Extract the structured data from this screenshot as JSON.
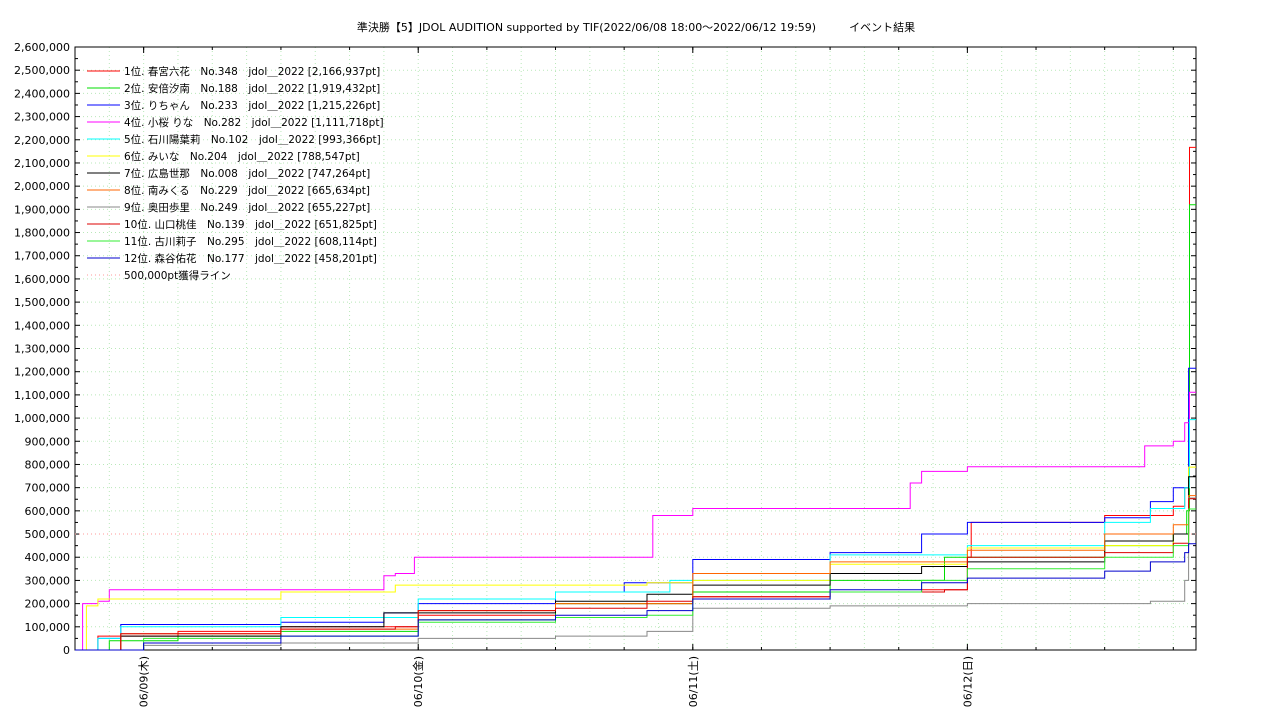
{
  "chart_data": {
    "type": "line",
    "title": "準決勝【5】JDOL AUDITION supported by TIF(2022/06/08 18:00～2022/06/12 19:59)　　　イベント結果",
    "xlabel": "",
    "ylabel": "",
    "x_start": "2022-06-08 18:00",
    "x_end": "2022-06-12 19:59",
    "ylim": [
      0,
      2600000
    ],
    "grid": true,
    "legend_position": "top-left",
    "y_ticks": [
      "0",
      "100,000",
      "200,000",
      "300,000",
      "400,000",
      "500,000",
      "600,000",
      "700,000",
      "800,000",
      "900,000",
      "1,000,000",
      "1,100,000",
      "1,200,000",
      "1,300,000",
      "1,400,000",
      "1,500,000",
      "1,600,000",
      "1,700,000",
      "1,800,000",
      "1,900,000",
      "2,000,000",
      "2,100,000",
      "2,200,000",
      "2,300,000",
      "2,400,000",
      "2,500,000",
      "2,600,000"
    ],
    "x_ticks": [
      {
        "x": "2022-06-09 00:00",
        "label": "06/09(木)"
      },
      {
        "x": "2022-06-10 00:00",
        "label": "06/10(金)"
      },
      {
        "x": "2022-06-11 00:00",
        "label": "06/11(土)"
      },
      {
        "x": "2022-06-12 00:00",
        "label": "06/12(日)"
      }
    ],
    "threshold": {
      "value": 500000,
      "label": "500,000pt獲得ライン",
      "color": "#ff9999"
    },
    "series": [
      {
        "name": "  1位. 春宮六花　No.348　jdol＿2022 [2,166,937pt]",
        "color": "#ff0000",
        "points": [
          [
            "2022-06-08 18:00",
            0
          ],
          [
            "2022-06-08 20:00",
            60000
          ],
          [
            "2022-06-09 03:00",
            80000
          ],
          [
            "2022-06-09 12:00",
            100000
          ],
          [
            "2022-06-10 00:00",
            150000
          ],
          [
            "2022-06-10 12:00",
            200000
          ],
          [
            "2022-06-11 00:00",
            230000
          ],
          [
            "2022-06-11 12:00",
            250000
          ],
          [
            "2022-06-11 20:00",
            260000
          ],
          [
            "2022-06-12 00:00",
            400000
          ],
          [
            "2022-06-12 00:20",
            550000
          ],
          [
            "2022-06-12 12:00",
            580000
          ],
          [
            "2022-06-12 18:00",
            620000
          ],
          [
            "2022-06-12 19:00",
            700000
          ],
          [
            "2022-06-12 19:25",
            2166937
          ],
          [
            "2022-06-12 19:59",
            2166937
          ]
        ]
      },
      {
        "name": "  2位. 安倍汐南　No.188　jdol＿2022 [1,919,432pt]",
        "color": "#00dd00",
        "points": [
          [
            "2022-06-08 18:00",
            0
          ],
          [
            "2022-06-08 21:00",
            40000
          ],
          [
            "2022-06-09 03:00",
            60000
          ],
          [
            "2022-06-09 12:00",
            80000
          ],
          [
            "2022-06-10 00:00",
            130000
          ],
          [
            "2022-06-10 12:00",
            200000
          ],
          [
            "2022-06-11 00:00",
            250000
          ],
          [
            "2022-06-11 12:00",
            300000
          ],
          [
            "2022-06-11 22:00",
            400000
          ],
          [
            "2022-06-12 12:00",
            450000
          ],
          [
            "2022-06-12 18:00",
            500000
          ],
          [
            "2022-06-12 19:10",
            600000
          ],
          [
            "2022-06-12 19:25",
            1919432
          ],
          [
            "2022-06-12 19:59",
            1919432
          ]
        ]
      },
      {
        "name": "  3位. りちゃん　No.233　jdol＿2022 [1,215,226pt]",
        "color": "#0000ff",
        "points": [
          [
            "2022-06-08 18:00",
            0
          ],
          [
            "2022-06-08 20:00",
            50000
          ],
          [
            "2022-06-08 22:00",
            110000
          ],
          [
            "2022-06-09 12:00",
            120000
          ],
          [
            "2022-06-09 21:00",
            160000
          ],
          [
            "2022-06-10 00:00",
            200000
          ],
          [
            "2022-06-10 12:00",
            250000
          ],
          [
            "2022-06-10 18:00",
            290000
          ],
          [
            "2022-06-11 00:00",
            390000
          ],
          [
            "2022-06-11 12:00",
            420000
          ],
          [
            "2022-06-11 20:00",
            500000
          ],
          [
            "2022-06-12 00:00",
            550000
          ],
          [
            "2022-06-12 12:00",
            570000
          ],
          [
            "2022-06-12 16:00",
            640000
          ],
          [
            "2022-06-12 18:00",
            700000
          ],
          [
            "2022-06-12 19:20",
            1215226
          ],
          [
            "2022-06-12 19:59",
            1215226
          ]
        ]
      },
      {
        "name": "  4位. 小桜 りな　No.282　jdol＿2022 [1,111,718pt]",
        "color": "#ff00ff",
        "points": [
          [
            "2022-06-08 18:00",
            0
          ],
          [
            "2022-06-08 18:40",
            200000
          ],
          [
            "2022-06-08 20:00",
            210000
          ],
          [
            "2022-06-08 21:00",
            260000
          ],
          [
            "2022-06-09 20:00",
            260000
          ],
          [
            "2022-06-09 21:00",
            320000
          ],
          [
            "2022-06-09 22:00",
            330000
          ],
          [
            "2022-06-09 23:40",
            400000
          ],
          [
            "2022-06-10 20:00",
            400000
          ],
          [
            "2022-06-10 20:30",
            580000
          ],
          [
            "2022-06-11 00:00",
            610000
          ],
          [
            "2022-06-11 18:00",
            610000
          ],
          [
            "2022-06-11 19:00",
            720000
          ],
          [
            "2022-06-11 20:00",
            770000
          ],
          [
            "2022-06-12 00:00",
            790000
          ],
          [
            "2022-06-12 15:00",
            790000
          ],
          [
            "2022-06-12 15:30",
            880000
          ],
          [
            "2022-06-12 18:00",
            900000
          ],
          [
            "2022-06-12 19:00",
            980000
          ],
          [
            "2022-06-12 19:25",
            1111718
          ],
          [
            "2022-06-12 19:59",
            1111718
          ]
        ]
      },
      {
        "name": "  5位. 石川陽葉莉　No.102　jdol＿2022 [993,366pt]",
        "color": "#00ffff",
        "points": [
          [
            "2022-06-08 18:00",
            0
          ],
          [
            "2022-06-08 20:00",
            50000
          ],
          [
            "2022-06-08 22:00",
            100000
          ],
          [
            "2022-06-09 12:00",
            140000
          ],
          [
            "2022-06-10 00:00",
            220000
          ],
          [
            "2022-06-10 12:00",
            250000
          ],
          [
            "2022-06-10 22:00",
            300000
          ],
          [
            "2022-06-11 12:00",
            410000
          ],
          [
            "2022-06-12 00:00",
            450000
          ],
          [
            "2022-06-12 12:00",
            550000
          ],
          [
            "2022-06-12 16:00",
            610000
          ],
          [
            "2022-06-12 19:00",
            700000
          ],
          [
            "2022-06-12 19:25",
            993366
          ],
          [
            "2022-06-12 19:59",
            993366
          ]
        ]
      },
      {
        "name": "  6位. みいな　No.204　jdol＿2022 [788,547pt]",
        "color": "#ffff00",
        "points": [
          [
            "2022-06-08 18:00",
            0
          ],
          [
            "2022-06-08 19:00",
            190000
          ],
          [
            "2022-06-08 20:00",
            220000
          ],
          [
            "2022-06-09 12:00",
            250000
          ],
          [
            "2022-06-09 22:00",
            280000
          ],
          [
            "2022-06-10 20:00",
            290000
          ],
          [
            "2022-06-11 00:00",
            300000
          ],
          [
            "2022-06-11 12:00",
            370000
          ],
          [
            "2022-06-12 00:00",
            440000
          ],
          [
            "2022-06-12 12:00",
            450000
          ],
          [
            "2022-06-12 18:00",
            500000
          ],
          [
            "2022-06-12 19:20",
            788547
          ],
          [
            "2022-06-12 19:59",
            788547
          ]
        ]
      },
      {
        "name": "  7位. 広島世那　No.008　jdol＿2022 [747,264pt]",
        "color": "#000000",
        "points": [
          [
            "2022-06-08 18:00",
            0
          ],
          [
            "2022-06-08 22:00",
            60000
          ],
          [
            "2022-06-09 12:00",
            100000
          ],
          [
            "2022-06-09 21:00",
            160000
          ],
          [
            "2022-06-10 12:00",
            210000
          ],
          [
            "2022-06-10 20:00",
            240000
          ],
          [
            "2022-06-11 00:00",
            280000
          ],
          [
            "2022-06-11 12:00",
            330000
          ],
          [
            "2022-06-11 20:00",
            360000
          ],
          [
            "2022-06-12 00:00",
            380000
          ],
          [
            "2022-06-12 12:00",
            470000
          ],
          [
            "2022-06-12 18:00",
            500000
          ],
          [
            "2022-06-12 19:20",
            747264
          ],
          [
            "2022-06-12 19:59",
            747264
          ]
        ]
      },
      {
        "name": "  8位. 南みくる　No.229　jdol＿2022 [665,634pt]",
        "color": "#ff6600",
        "points": [
          [
            "2022-06-08 18:00",
            0
          ],
          [
            "2022-06-08 22:00",
            70000
          ],
          [
            "2022-06-09 12:00",
            90000
          ],
          [
            "2022-06-10 00:00",
            170000
          ],
          [
            "2022-06-10 12:00",
            200000
          ],
          [
            "2022-06-11 00:00",
            330000
          ],
          [
            "2022-06-11 12:00",
            380000
          ],
          [
            "2022-06-12 00:00",
            430000
          ],
          [
            "2022-06-12 12:00",
            500000
          ],
          [
            "2022-06-12 18:00",
            540000
          ],
          [
            "2022-06-12 19:20",
            665634
          ],
          [
            "2022-06-12 19:59",
            665634
          ]
        ]
      },
      {
        "name": "  9位. 奥田歩里　No.249　jdol＿2022 [655,227pt]",
        "color": "#888888",
        "points": [
          [
            "2022-06-08 18:00",
            0
          ],
          [
            "2022-06-09 00:00",
            20000
          ],
          [
            "2022-06-09 12:00",
            30000
          ],
          [
            "2022-06-10 00:00",
            50000
          ],
          [
            "2022-06-10 12:00",
            60000
          ],
          [
            "2022-06-10 20:00",
            80000
          ],
          [
            "2022-06-11 00:00",
            180000
          ],
          [
            "2022-06-11 12:00",
            190000
          ],
          [
            "2022-06-12 00:00",
            200000
          ],
          [
            "2022-06-12 12:00",
            200000
          ],
          [
            "2022-06-12 16:00",
            210000
          ],
          [
            "2022-06-12 19:00",
            300000
          ],
          [
            "2022-06-12 19:20",
            655227
          ],
          [
            "2022-06-12 19:59",
            655227
          ]
        ]
      },
      {
        "name": "10位. 山口桃佳　No.139　jdol＿2022 [651,825pt]",
        "color": "#dd0000",
        "points": [
          [
            "2022-06-08 18:00",
            0
          ],
          [
            "2022-06-08 22:00",
            70000
          ],
          [
            "2022-06-09 12:00",
            90000
          ],
          [
            "2022-06-09 22:00",
            100000
          ],
          [
            "2022-06-10 00:00",
            170000
          ],
          [
            "2022-06-10 12:00",
            180000
          ],
          [
            "2022-06-10 20:00",
            210000
          ],
          [
            "2022-06-11 00:00",
            230000
          ],
          [
            "2022-06-11 12:00",
            250000
          ],
          [
            "2022-06-11 22:00",
            260000
          ],
          [
            "2022-06-12 00:00",
            400000
          ],
          [
            "2022-06-12 12:00",
            420000
          ],
          [
            "2022-06-12 18:00",
            460000
          ],
          [
            "2022-06-12 19:20",
            651825
          ],
          [
            "2022-06-12 19:59",
            651825
          ]
        ]
      },
      {
        "name": "11位. 古川莉子　No.295　jdol＿2022 [608,114pt]",
        "color": "#33ee33",
        "points": [
          [
            "2022-06-08 18:00",
            0
          ],
          [
            "2022-06-09 00:00",
            50000
          ],
          [
            "2022-06-09 12:00",
            60000
          ],
          [
            "2022-06-10 00:00",
            120000
          ],
          [
            "2022-06-10 12:00",
            140000
          ],
          [
            "2022-06-10 20:00",
            150000
          ],
          [
            "2022-06-11 00:00",
            220000
          ],
          [
            "2022-06-11 12:00",
            250000
          ],
          [
            "2022-06-11 20:00",
            300000
          ],
          [
            "2022-06-12 00:00",
            350000
          ],
          [
            "2022-06-12 12:00",
            400000
          ],
          [
            "2022-06-12 18:00",
            450000
          ],
          [
            "2022-06-12 19:20",
            608114
          ],
          [
            "2022-06-12 19:59",
            608114
          ]
        ]
      },
      {
        "name": "12位. 森谷佑花　No.177　jdol＿2022 [458,201pt]",
        "color": "#0000cc",
        "points": [
          [
            "2022-06-08 18:00",
            0
          ],
          [
            "2022-06-09 00:00",
            30000
          ],
          [
            "2022-06-09 12:00",
            60000
          ],
          [
            "2022-06-10 00:00",
            130000
          ],
          [
            "2022-06-10 12:00",
            150000
          ],
          [
            "2022-06-10 20:00",
            170000
          ],
          [
            "2022-06-11 00:00",
            220000
          ],
          [
            "2022-06-11 12:00",
            260000
          ],
          [
            "2022-06-11 20:00",
            290000
          ],
          [
            "2022-06-12 00:00",
            310000
          ],
          [
            "2022-06-12 12:00",
            340000
          ],
          [
            "2022-06-12 16:00",
            380000
          ],
          [
            "2022-06-12 19:00",
            420000
          ],
          [
            "2022-06-12 19:20",
            458201
          ],
          [
            "2022-06-12 19:59",
            458201
          ]
        ]
      }
    ]
  }
}
